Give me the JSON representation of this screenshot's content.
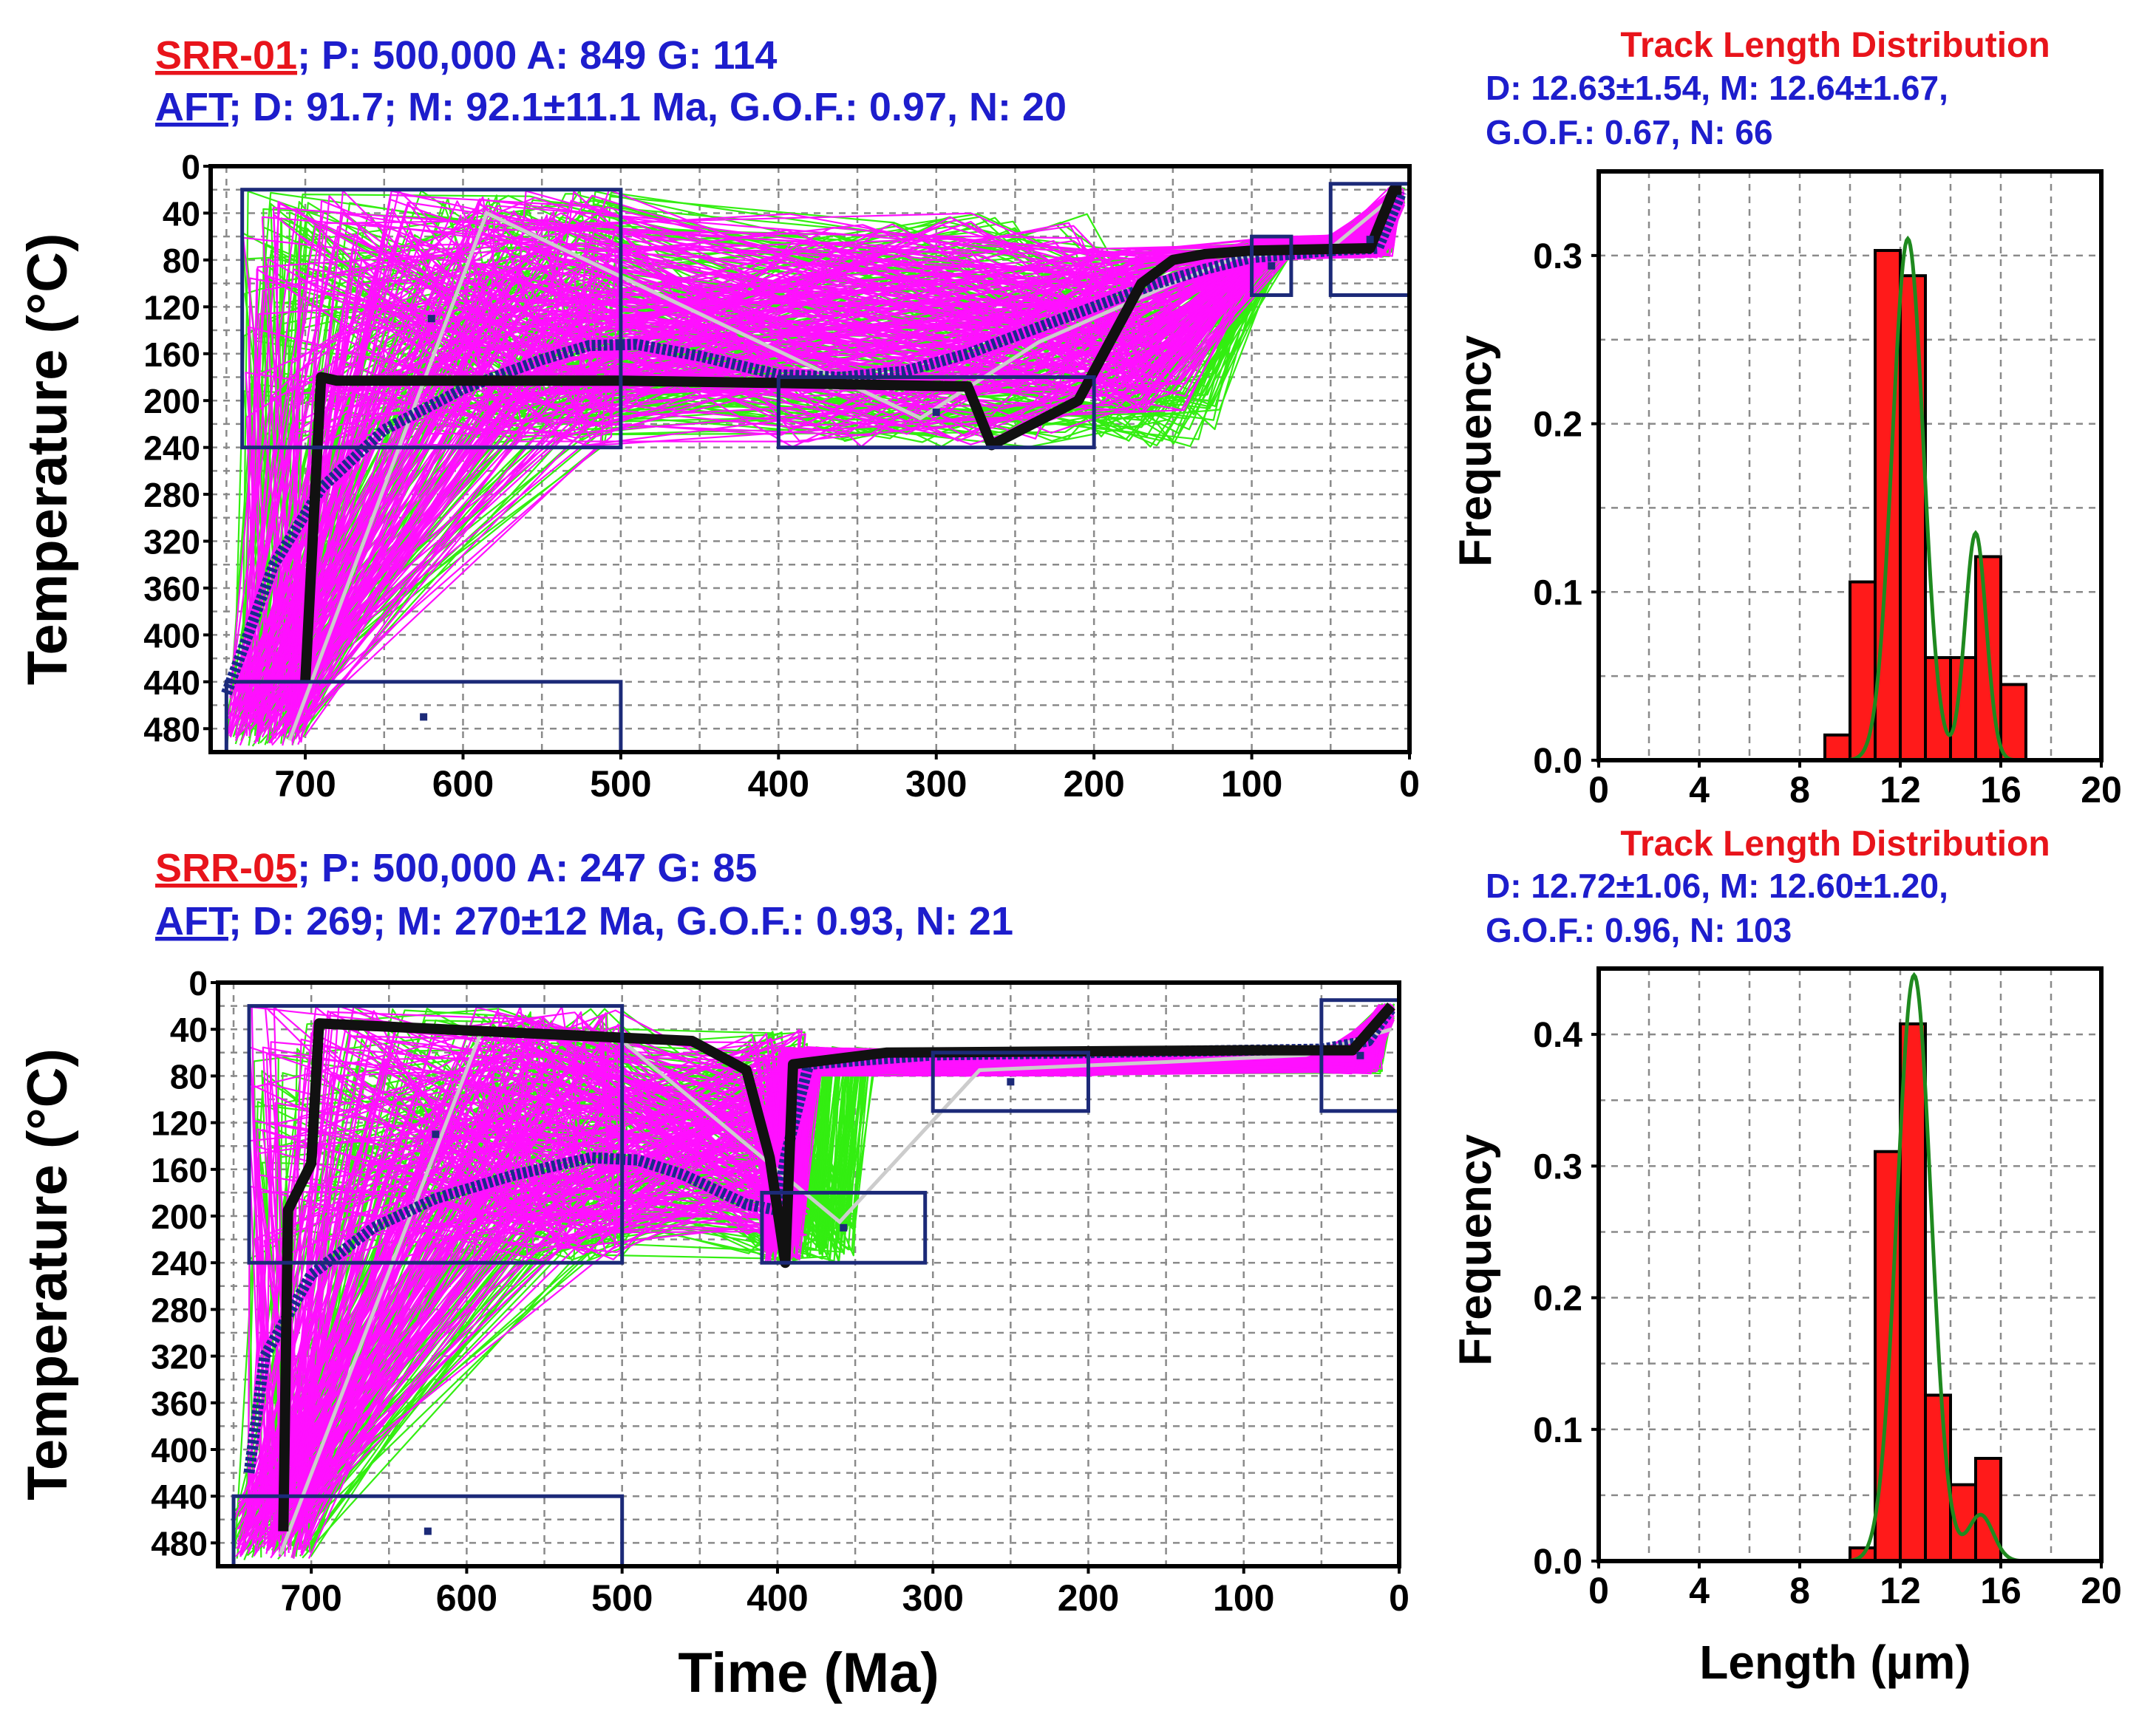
{
  "colors": {
    "sample_red": "#e8141b",
    "title_blue": "#1d1dcc",
    "path_green": "#33ee11",
    "path_magenta": "#ff10ff",
    "weighted_mean_blue": "#1a2a8c",
    "best_fit_black": "#111111",
    "constraint_navy": "#1c2a78",
    "bar_red": "#ff1a1a",
    "pdf_green": "#1f8a1f",
    "light_path": "#cccccc"
  },
  "shared": {
    "temperature_axis_label": "Temperature (°C)",
    "time_axis_label": "Time (Ma)",
    "frequency_axis_label": "Frequency",
    "length_axis_label": "Length (µm)",
    "tld_title": "Track Length Distribution"
  },
  "chart_data": [
    {
      "type": "line",
      "panel": "SRR-01 time-temperature history",
      "sample": "SRR-01",
      "header_line1": "; P: 500,000 A: 849 G: 114",
      "aft": "AFT",
      "header_line2": "; D: 91.7; M: 92.1±11.1 Ma, G.O.F.: 0.97, N: 20",
      "xlabel": "",
      "ylabel": "Temperature (°C)",
      "xlim": [
        760,
        0
      ],
      "ylim": [
        0,
        500
      ],
      "x_ticks": [
        "700",
        "600",
        "500",
        "400",
        "300",
        "200",
        "100",
        "0"
      ],
      "x_tick_values": [
        700,
        600,
        500,
        400,
        300,
        200,
        100,
        0
      ],
      "y_ticks": [
        "0",
        "40",
        "80",
        "120",
        "160",
        "200",
        "240",
        "280",
        "320",
        "360",
        "400",
        "440",
        "480"
      ],
      "y_tick_values": [
        0,
        40,
        80,
        120,
        160,
        200,
        240,
        280,
        320,
        360,
        400,
        440,
        480
      ],
      "constraint_boxes": [
        [
          740,
          500,
          20,
          240
        ],
        [
          400,
          200,
          180,
          240
        ],
        [
          100,
          75,
          60,
          110
        ],
        [
          50,
          0,
          15,
          110
        ],
        [
          750,
          500,
          440,
          500
        ]
      ],
      "best_fit_path": {
        "x": [
          700,
          690,
          680,
          500,
          400,
          280,
          265,
          210,
          170,
          150,
          130,
          100,
          25,
          10,
          5
        ],
        "y": [
          440,
          180,
          183,
          183,
          185,
          188,
          238,
          200,
          100,
          80,
          75,
          72,
          70,
          20,
          20
        ]
      },
      "weighted_mean_path": {
        "x": [
          750,
          720,
          690,
          650,
          600,
          550,
          520,
          490,
          450,
          400,
          360,
          320,
          280,
          240,
          200,
          160,
          130,
          100,
          50,
          20,
          5
        ],
        "y": [
          450,
          340,
          275,
          225,
          190,
          165,
          153,
          152,
          162,
          178,
          180,
          175,
          160,
          140,
          120,
          100,
          88,
          78,
          72,
          70,
          22
        ]
      },
      "light_path": {
        "x": [
          710,
          585,
          310,
          235,
          150,
          110,
          50,
          5
        ],
        "y": [
          490,
          40,
          215,
          150,
          100,
          78,
          70,
          20
        ]
      }
    },
    {
      "type": "bar",
      "panel": "SRR-01 track length distribution",
      "stats_line1": "D: 12.63±1.54, M: 12.64±1.67,",
      "stats_line2": "G.O.F.: 0.67, N: 66",
      "xlabel": "",
      "ylabel": "Frequency",
      "xlim": [
        0,
        20
      ],
      "ylim": [
        0,
        0.35
      ],
      "x_ticks": [
        "0",
        "4",
        "8",
        "12",
        "16",
        "20"
      ],
      "x_tick_values": [
        0,
        4,
        8,
        12,
        16,
        20
      ],
      "y_ticks": [
        "0.0",
        "0.1",
        "0.2",
        "0.3"
      ],
      "y_tick_values": [
        0,
        0.1,
        0.2,
        0.3
      ],
      "bin_edges": [
        9,
        10,
        11,
        12,
        13,
        14,
        15,
        16,
        17
      ],
      "values": [
        0.015,
        0.106,
        0.303,
        0.288,
        0.061,
        0.061,
        0.121,
        0.045
      ],
      "pdf": {
        "peaks": [
          {
            "mu": 12.3,
            "sigma": 0.62,
            "height": 0.31
          },
          {
            "mu": 15.0,
            "sigma": 0.42,
            "height": 0.135
          }
        ],
        "cap": 0.325
      }
    },
    {
      "type": "line",
      "panel": "SRR-05 time-temperature history",
      "sample": "SRR-05",
      "header_line1": "; P: 500,000 A: 247 G: 85",
      "aft": "AFT",
      "header_line2": "; D: 269; M: 270±12 Ma, G.O.F.: 0.93, N: 21",
      "xlabel": "Time (Ma)",
      "ylabel": "Temperature (°C)",
      "xlim": [
        760,
        0
      ],
      "ylim": [
        0,
        500
      ],
      "x_ticks": [
        "700",
        "600",
        "500",
        "400",
        "300",
        "200",
        "100",
        "0"
      ],
      "x_tick_values": [
        700,
        600,
        500,
        400,
        300,
        200,
        100,
        0
      ],
      "y_ticks": [
        "0",
        "40",
        "80",
        "120",
        "160",
        "200",
        "240",
        "280",
        "320",
        "360",
        "400",
        "440",
        "480"
      ],
      "y_tick_values": [
        0,
        40,
        80,
        120,
        160,
        200,
        240,
        280,
        320,
        360,
        400,
        440,
        480
      ],
      "constraint_boxes": [
        [
          740,
          500,
          20,
          240
        ],
        [
          410,
          305,
          180,
          240
        ],
        [
          300,
          200,
          60,
          110
        ],
        [
          50,
          0,
          15,
          110
        ],
        [
          750,
          500,
          440,
          500
        ]
      ],
      "best_fit_path": {
        "x": [
          718,
          715,
          700,
          695,
          455,
          420,
          405,
          395,
          390,
          330,
          100,
          30,
          5
        ],
        "y": [
          470,
          195,
          155,
          35,
          50,
          75,
          150,
          240,
          70,
          60,
          58,
          58,
          20
        ]
      },
      "weighted_mean_path": {
        "x": [
          740,
          730,
          700,
          660,
          620,
          570,
          520,
          490,
          460,
          420,
          400,
          395,
          380,
          300,
          200,
          100,
          50,
          20,
          5
        ],
        "y": [
          420,
          320,
          250,
          210,
          185,
          165,
          150,
          152,
          165,
          190,
          195,
          150,
          70,
          62,
          60,
          58,
          57,
          50,
          22
        ]
      },
      "light_path": {
        "x": [
          720,
          590,
          500,
          360,
          270,
          150,
          60,
          5
        ],
        "y": [
          490,
          40,
          50,
          205,
          75,
          68,
          62,
          40
        ]
      }
    },
    {
      "type": "bar",
      "panel": "SRR-05 track length distribution",
      "stats_line1": "D: 12.72±1.06, M: 12.60±1.20,",
      "stats_line2": "G.O.F.: 0.96, N: 103",
      "xlabel": "Length (µm)",
      "ylabel": "Frequency",
      "xlim": [
        0,
        20
      ],
      "ylim": [
        0,
        0.45
      ],
      "x_ticks": [
        "0",
        "4",
        "8",
        "12",
        "16",
        "20"
      ],
      "x_tick_values": [
        0,
        4,
        8,
        12,
        16,
        20
      ],
      "y_ticks": [
        "0.0",
        "0.1",
        "0.2",
        "0.3",
        "0.4"
      ],
      "y_tick_values": [
        0,
        0.1,
        0.2,
        0.3,
        0.4
      ],
      "bin_edges": [
        10,
        11,
        12,
        13,
        14,
        15,
        16
      ],
      "values": [
        0.01,
        0.311,
        0.408,
        0.126,
        0.058,
        0.078
      ],
      "pdf": {
        "peaks": [
          {
            "mu": 12.55,
            "sigma": 0.68,
            "height": 0.445
          },
          {
            "mu": 15.2,
            "sigma": 0.5,
            "height": 0.035
          }
        ],
        "cap": 0.45
      }
    }
  ]
}
